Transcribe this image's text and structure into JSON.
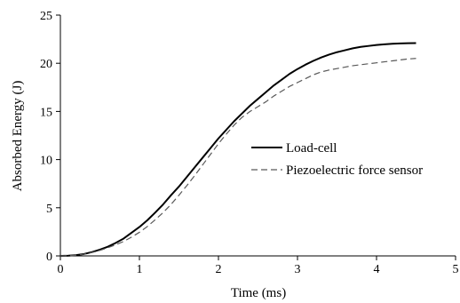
{
  "chart_data": {
    "type": "line",
    "xlabel": "Time (ms)",
    "ylabel": "Absorbed Energy  (J)",
    "xlim": [
      0,
      5
    ],
    "ylim": [
      0,
      25
    ],
    "x_ticks": [
      "0",
      "1",
      "2",
      "3",
      "4",
      "5"
    ],
    "y_ticks": [
      "0",
      "5",
      "10",
      "15",
      "20",
      "25"
    ],
    "grid": false,
    "legend_position": "center-right",
    "series": [
      {
        "name": "Load-cell",
        "style": "solid",
        "color": "#000000",
        "x": [
          0,
          0.1,
          0.2,
          0.3,
          0.4,
          0.5,
          0.6,
          0.7,
          0.8,
          0.9,
          1.0,
          1.1,
          1.2,
          1.3,
          1.4,
          1.5,
          1.6,
          1.7,
          1.8,
          1.9,
          2.0,
          2.1,
          2.2,
          2.3,
          2.4,
          2.5,
          2.6,
          2.7,
          2.8,
          2.9,
          3.0,
          3.1,
          3.2,
          3.3,
          3.4,
          3.5,
          3.6,
          3.7,
          3.8,
          3.9,
          4.0,
          4.1,
          4.2,
          4.3,
          4.4,
          4.5
        ],
        "values": [
          0,
          0.02,
          0.08,
          0.2,
          0.4,
          0.65,
          0.95,
          1.35,
          1.8,
          2.4,
          3.0,
          3.7,
          4.5,
          5.35,
          6.3,
          7.2,
          8.2,
          9.2,
          10.2,
          11.2,
          12.2,
          13.1,
          14.0,
          14.8,
          15.6,
          16.3,
          17.0,
          17.7,
          18.3,
          18.9,
          19.4,
          19.85,
          20.25,
          20.6,
          20.9,
          21.15,
          21.35,
          21.55,
          21.7,
          21.8,
          21.9,
          21.97,
          22.02,
          22.06,
          22.08,
          22.1
        ]
      },
      {
        "name": "Piezoelectric force sensor",
        "style": "dashed",
        "color": "#595959",
        "x": [
          0,
          0.1,
          0.2,
          0.3,
          0.4,
          0.5,
          0.6,
          0.7,
          0.8,
          0.9,
          1.0,
          1.1,
          1.2,
          1.3,
          1.4,
          1.5,
          1.6,
          1.7,
          1.8,
          1.9,
          2.0,
          2.1,
          2.2,
          2.3,
          2.4,
          2.5,
          2.6,
          2.7,
          2.8,
          2.9,
          3.0,
          3.1,
          3.2,
          3.3,
          3.4,
          3.5,
          3.6,
          3.7,
          3.8,
          3.9,
          4.0,
          4.1,
          4.2,
          4.3,
          4.4,
          4.5
        ],
        "values": [
          0,
          0.02,
          0.07,
          0.18,
          0.35,
          0.57,
          0.85,
          1.15,
          1.5,
          1.95,
          2.45,
          3.05,
          3.75,
          4.5,
          5.35,
          6.3,
          7.3,
          8.35,
          9.45,
          10.55,
          11.65,
          12.65,
          13.6,
          14.4,
          15.0,
          15.5,
          16.0,
          16.6,
          17.1,
          17.6,
          18.0,
          18.4,
          18.8,
          19.1,
          19.3,
          19.45,
          19.6,
          19.75,
          19.85,
          19.95,
          20.05,
          20.15,
          20.25,
          20.35,
          20.45,
          20.5
        ]
      }
    ]
  }
}
